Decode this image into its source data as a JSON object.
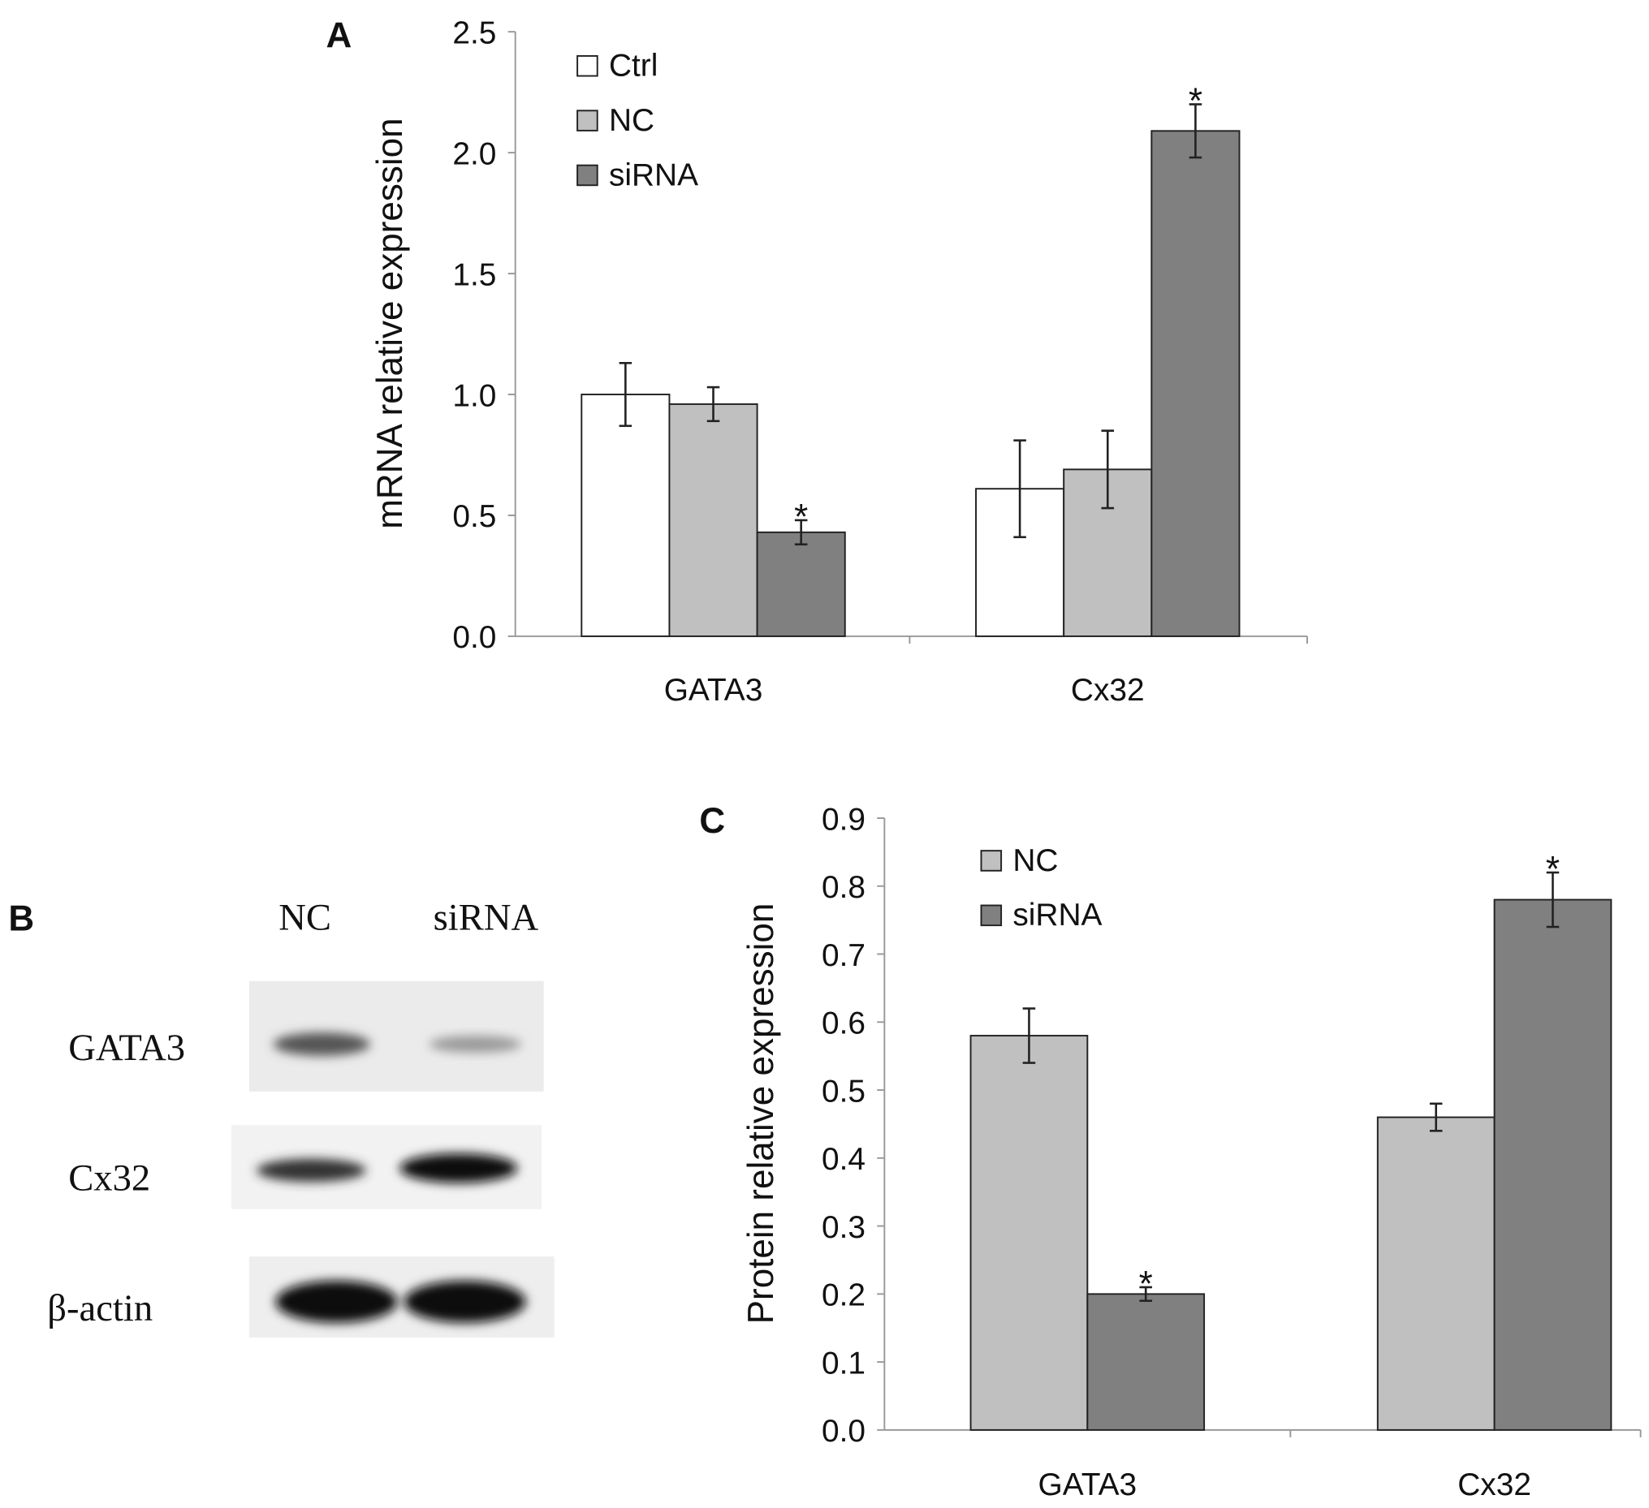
{
  "chart_data": [
    {
      "panel": "A",
      "type": "bar",
      "ylabel": "mRNA relative expression",
      "xlabel": "",
      "ylim": [
        0,
        2.5
      ],
      "yticks": [
        "0.0",
        "0.5",
        "1.0",
        "1.5",
        "2.0",
        "2.5"
      ],
      "categories": [
        "GATA3",
        "Cx32"
      ],
      "legend_position": "top-left",
      "series": [
        {
          "name": "Ctrl",
          "color": "#ffffff",
          "values": [
            1.0,
            0.61
          ],
          "errors": [
            0.13,
            0.2
          ],
          "sig": [
            "",
            ""
          ]
        },
        {
          "name": "NC",
          "color": "#c0c0c0",
          "values": [
            0.96,
            0.69
          ],
          "errors": [
            0.07,
            0.16
          ],
          "sig": [
            "",
            ""
          ]
        },
        {
          "name": "siRNA",
          "color": "#808080",
          "values": [
            0.43,
            2.09
          ],
          "errors": [
            0.05,
            0.11
          ],
          "sig": [
            "*",
            "*"
          ]
        }
      ]
    },
    {
      "panel": "C",
      "type": "bar",
      "ylabel": "Protein relative expression",
      "xlabel": "",
      "ylim": [
        0,
        0.9
      ],
      "yticks": [
        "0.0",
        "0.1",
        "0.2",
        "0.3",
        "0.4",
        "0.5",
        "0.6",
        "0.7",
        "0.8",
        "0.9"
      ],
      "categories": [
        "GATA3",
        "Cx32"
      ],
      "legend_position": "top-left",
      "series": [
        {
          "name": "NC",
          "color": "#c0c0c0",
          "values": [
            0.58,
            0.46
          ],
          "errors": [
            0.04,
            0.02
          ],
          "sig": [
            "",
            ""
          ]
        },
        {
          "name": "siRNA",
          "color": "#808080",
          "values": [
            0.2,
            0.78
          ],
          "errors": [
            0.01,
            0.04
          ],
          "sig": [
            "*",
            "*"
          ]
        }
      ]
    }
  ],
  "blot": {
    "panel": "B",
    "lanes": [
      "NC",
      "siRNA"
    ],
    "rows": [
      "GATA3",
      "Cx32",
      "β-actin"
    ]
  }
}
